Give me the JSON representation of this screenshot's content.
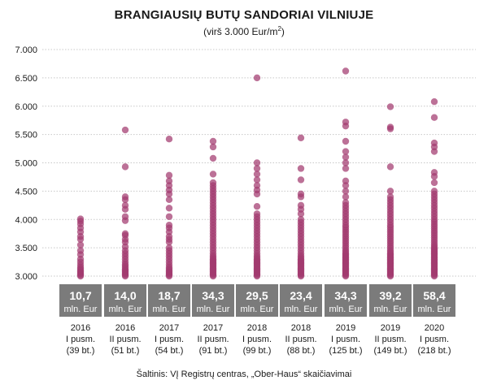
{
  "chart_data": {
    "type": "scatter",
    "title": "BRANGIAUSIŲ BUTŲ SANDORIAI VILNIUJE",
    "subtitle_prefix": "(virš 3.000 Eur/m",
    "subtitle_sup": "2",
    "subtitle_suffix": ")",
    "ylim": [
      3000,
      7000
    ],
    "y_ticks": [
      "7.000",
      "6.500",
      "6.000",
      "5.500",
      "5.000",
      "4.500",
      "4.000",
      "3.500",
      "3.000"
    ],
    "y_tick_values": [
      7000,
      6500,
      6000,
      5500,
      5000,
      4500,
      4000,
      3500,
      3000
    ],
    "marker_color": "#a23a6f",
    "box_color": "#7b7b7b",
    "categories": [
      {
        "year": "2016",
        "half": "I pusm.",
        "count": "(39 bt.)",
        "value": "10,7",
        "unit": "mln. Eur",
        "points": [
          3000,
          3020,
          3040,
          3060,
          3080,
          3100,
          3130,
          3160,
          3200,
          3250,
          3300,
          3380,
          3450,
          3550,
          3650,
          3700,
          3780,
          3850,
          3920,
          3970,
          4010
        ]
      },
      {
        "year": "2016",
        "half": "II pusm.",
        "count": "(51 bt.)",
        "value": "14,0",
        "unit": "mln. Eur",
        "points": [
          3000,
          3020,
          3040,
          3060,
          3080,
          3100,
          3120,
          3150,
          3180,
          3210,
          3250,
          3300,
          3350,
          3400,
          3450,
          3520,
          3600,
          3650,
          3720,
          3750,
          3980,
          4050,
          4180,
          4250,
          4350,
          4400,
          4930,
          5580
        ]
      },
      {
        "year": "2017",
        "half": "I pusm.",
        "count": "(54 bt.)",
        "value": "18,7",
        "unit": "mln. Eur",
        "points": [
          3000,
          3020,
          3040,
          3060,
          3080,
          3100,
          3130,
          3160,
          3200,
          3250,
          3300,
          3350,
          3400,
          3450,
          3500,
          3600,
          3650,
          3700,
          3780,
          3850,
          3900,
          4050,
          4200,
          4350,
          4450,
          4520,
          4600,
          4680,
          4780,
          5420
        ]
      },
      {
        "year": "2017",
        "half": "II pusm.",
        "count": "(91 bt.)",
        "value": "34,3",
        "unit": "mln. Eur",
        "points": [
          3000,
          3020,
          3040,
          3060,
          3080,
          3100,
          3120,
          3140,
          3160,
          3180,
          3200,
          3220,
          3240,
          3260,
          3280,
          3300,
          3330,
          3360,
          3400,
          3450,
          3500,
          3550,
          3600,
          3650,
          3700,
          3750,
          3800,
          3850,
          3900,
          3950,
          4000,
          4050,
          4100,
          4150,
          4200,
          4250,
          4300,
          4350,
          4400,
          4450,
          4500,
          4550,
          4600,
          4650,
          4800,
          5080,
          5280,
          5380
        ]
      },
      {
        "year": "2018",
        "half": "I pusm.",
        "count": "(99 bt.)",
        "value": "29,5",
        "unit": "mln. Eur",
        "points": [
          3000,
          3020,
          3040,
          3060,
          3080,
          3100,
          3120,
          3140,
          3160,
          3180,
          3200,
          3220,
          3240,
          3260,
          3280,
          3300,
          3330,
          3360,
          3400,
          3450,
          3500,
          3550,
          3600,
          3650,
          3700,
          3750,
          3800,
          3850,
          3900,
          3950,
          4000,
          4050,
          4100,
          4230,
          4450,
          4520,
          4600,
          4700,
          4800,
          4900,
          5000,
          6500
        ]
      },
      {
        "year": "2018",
        "half": "II pusm.",
        "count": "(88 bt.)",
        "value": "23,4",
        "unit": "mln. Eur",
        "points": [
          3000,
          3020,
          3040,
          3060,
          3080,
          3100,
          3120,
          3140,
          3160,
          3180,
          3200,
          3220,
          3240,
          3260,
          3280,
          3300,
          3330,
          3360,
          3400,
          3450,
          3500,
          3550,
          3600,
          3650,
          3700,
          3750,
          3800,
          3850,
          3900,
          3950,
          4000,
          4100,
          4180,
          4250,
          4400,
          4450,
          4700,
          4900,
          5440
        ]
      },
      {
        "year": "2019",
        "half": "I pusm.",
        "count": "(125 bt.)",
        "value": "34,3",
        "unit": "mln. Eur",
        "points": [
          3000,
          3020,
          3040,
          3060,
          3080,
          3100,
          3120,
          3140,
          3160,
          3180,
          3200,
          3220,
          3240,
          3260,
          3280,
          3300,
          3320,
          3340,
          3360,
          3380,
          3400,
          3430,
          3460,
          3500,
          3540,
          3580,
          3620,
          3660,
          3700,
          3740,
          3780,
          3820,
          3860,
          3900,
          3950,
          4000,
          4050,
          4100,
          4150,
          4200,
          4250,
          4300,
          4400,
          4500,
          4600,
          4680,
          4900,
          5000,
          5100,
          5200,
          5380,
          5650,
          5720,
          6620
        ]
      },
      {
        "year": "2019",
        "half": "II pusm.",
        "count": "(149 bt.)",
        "value": "39,2",
        "unit": "mln. Eur",
        "points": [
          3000,
          3020,
          3040,
          3060,
          3080,
          3100,
          3120,
          3140,
          3160,
          3180,
          3200,
          3220,
          3240,
          3260,
          3280,
          3300,
          3320,
          3340,
          3360,
          3380,
          3400,
          3430,
          3460,
          3500,
          3540,
          3580,
          3620,
          3660,
          3700,
          3740,
          3780,
          3820,
          3860,
          3900,
          3950,
          4000,
          4050,
          4100,
          4150,
          4200,
          4250,
          4300,
          4350,
          4400,
          4500,
          4930,
          5600,
          5630,
          5990
        ]
      },
      {
        "year": "2020",
        "half": "I pusm.",
        "count": "(218 bt.)",
        "value": "58,4",
        "unit": "mln. Eur",
        "points": [
          3000,
          3020,
          3040,
          3060,
          3080,
          3100,
          3120,
          3140,
          3160,
          3180,
          3200,
          3220,
          3240,
          3260,
          3280,
          3300,
          3320,
          3340,
          3360,
          3380,
          3400,
          3420,
          3440,
          3460,
          3480,
          3500,
          3530,
          3560,
          3600,
          3640,
          3680,
          3720,
          3760,
          3800,
          3840,
          3880,
          3920,
          3960,
          4000,
          4050,
          4100,
          4150,
          4200,
          4250,
          4300,
          4350,
          4400,
          4450,
          4500,
          4650,
          4760,
          4830,
          5200,
          5280,
          5350,
          5800,
          6080
        ]
      }
    ]
  },
  "source": "Šaltinis: VĮ Registrų centras, „Ober-Haus“ skaičiavimai"
}
